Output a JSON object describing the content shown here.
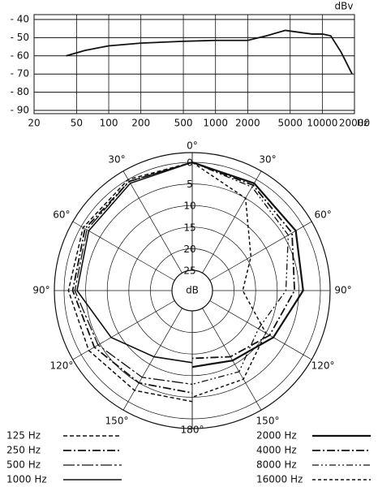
{
  "chart_data": [
    {
      "type": "line",
      "y_label": "dBv",
      "x_label": "Hz",
      "log_x": true,
      "grid": true,
      "color": "#111",
      "xlim": [
        20,
        20000
      ],
      "xticks": [
        20,
        50,
        100,
        200,
        500,
        1000,
        2000,
        5000,
        10000,
        20000
      ],
      "ylim": [
        -90,
        -40
      ],
      "yticks": [
        {
          "value": -40,
          "label": "- 40"
        },
        {
          "value": -50,
          "label": "- 50"
        },
        {
          "value": -60,
          "label": "- 60"
        },
        {
          "value": -70,
          "label": "- 70"
        },
        {
          "value": -80,
          "label": "- 80"
        },
        {
          "value": -90,
          "label": "- 90"
        }
      ],
      "x": [
        40,
        60,
        100,
        200,
        500,
        1000,
        2000,
        3000,
        4500,
        6000,
        8000,
        10000,
        12000,
        15000,
        19000
      ],
      "values": [
        -60,
        -57,
        -54.5,
        -53,
        -52,
        -51.5,
        -51.5,
        -49,
        -46,
        -47,
        -48,
        -48,
        -49,
        -58,
        -70
      ]
    },
    {
      "type": "polar",
      "r_label": "dB",
      "color": "#111",
      "rlim": [
        0,
        25
      ],
      "rticks": [
        0,
        5,
        10,
        15,
        20,
        25
      ],
      "angle_ticks": [
        {
          "value": 0,
          "label": "0°"
        },
        {
          "value": 30,
          "label": "30°"
        },
        {
          "value": 60,
          "label": "60°"
        },
        {
          "value": 90,
          "label": "90°"
        },
        {
          "value": 120,
          "label": "120°"
        },
        {
          "value": 150,
          "label": "150°"
        },
        {
          "value": 180,
          "label": "180°"
        }
      ],
      "angles": [
        0,
        30,
        60,
        90,
        120,
        150,
        180
      ],
      "series": [
        {
          "name": "125 Hz",
          "side": "left",
          "dash": "5 3",
          "width": 1.5,
          "values": [
            0,
            0,
            0.5,
            1,
            2,
            3,
            4
          ]
        },
        {
          "name": "250 Hz",
          "side": "left",
          "dash": "10 3 2 3",
          "width": 1.8,
          "values": [
            0,
            0.5,
            1,
            2,
            3.5,
            5,
            6
          ]
        },
        {
          "name": "500 Hz",
          "side": "left",
          "dash": "14 3 3 3",
          "width": 1.3,
          "values": [
            0,
            0.5,
            1.5,
            2.5,
            4.5,
            6.5,
            8
          ]
        },
        {
          "name": "1000 Hz",
          "side": "left",
          "dash": "none",
          "width": 1.6,
          "values": [
            0,
            1,
            2,
            3,
            8,
            12,
            13
          ]
        },
        {
          "name": "2000 Hz",
          "side": "right",
          "dash": "none",
          "width": 2.2,
          "values": [
            0,
            1,
            2,
            4,
            8,
            11,
            12
          ]
        },
        {
          "name": "4000 Hz",
          "side": "right",
          "dash": "10 3 2 3",
          "width": 1.8,
          "values": [
            0,
            1.5,
            3,
            6,
            9,
            12,
            14
          ]
        },
        {
          "name": "8000 Hz",
          "side": "right",
          "dash": "8 3 2 3 2 3",
          "width": 1.3,
          "values": [
            0,
            2,
            4,
            8,
            12,
            8,
            8
          ]
        },
        {
          "name": "16000 Hz",
          "side": "right",
          "dash": "4 3",
          "width": 1.5,
          "values": [
            0,
            5,
            14,
            18,
            10,
            6,
            5
          ]
        }
      ]
    }
  ]
}
